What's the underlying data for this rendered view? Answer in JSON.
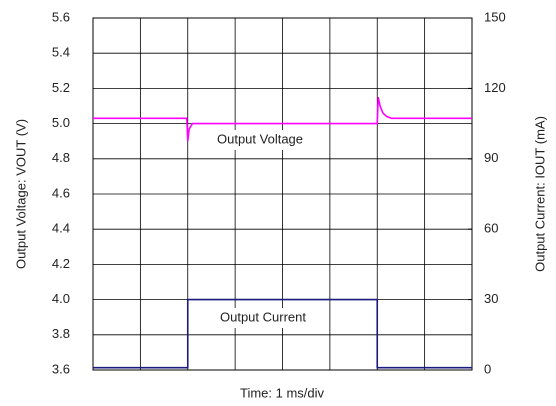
{
  "chart_data": {
    "type": "line",
    "xlabel": "Time: 1 ms/div",
    "ylabel": "Output Voltage: VOUT (V)",
    "y2label": "Output Current: IOUT (mA)",
    "xlim": [
      0,
      8
    ],
    "xticks": [
      0,
      1,
      2,
      3,
      4,
      5,
      6,
      7,
      8
    ],
    "ylim": [
      3.6,
      5.6
    ],
    "yticks": [
      3.6,
      3.8,
      {
        "value": 4,
        "label": "4.0"
      },
      4.2,
      4.4,
      4.6,
      4.8,
      {
        "value": 5,
        "label": "5.0"
      },
      5.2,
      5.4,
      5.6
    ],
    "y2lim": [
      0,
      150
    ],
    "y2ticks": [
      0,
      30,
      60,
      90,
      120,
      150
    ],
    "grid": true,
    "series": [
      {
        "name": "Output Voltage",
        "color": "#ff00ff",
        "axis": "y",
        "x": [
          0,
          1.98,
          2.0,
          2.03,
          2.1,
          2.3,
          6.0,
          6.02,
          6.06,
          6.12,
          6.2,
          6.3,
          8
        ],
        "values": [
          5.03,
          5.03,
          4.9,
          4.97,
          5.0,
          5.0,
          5.0,
          5.15,
          5.1,
          5.06,
          5.04,
          5.03,
          5.03
        ]
      },
      {
        "name": "Output Current",
        "color": "#1a1a80",
        "axis": "y2",
        "x": [
          0,
          2,
          2,
          6,
          6,
          8
        ],
        "values": [
          1,
          1,
          30,
          30,
          1,
          1
        ]
      }
    ]
  }
}
